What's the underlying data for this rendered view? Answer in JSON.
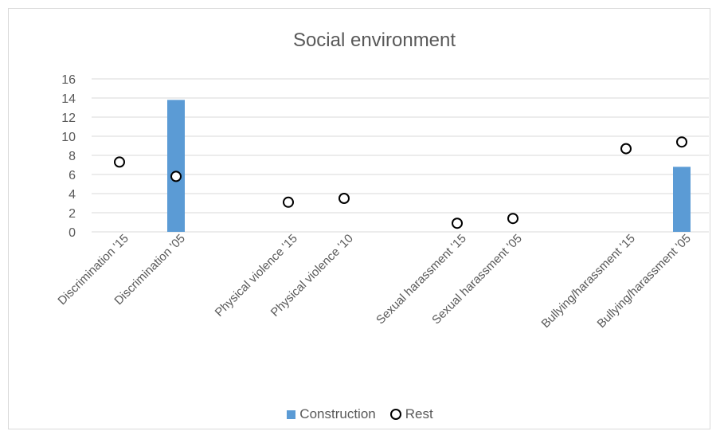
{
  "chart_data": {
    "type": "bar",
    "title": "Social environment",
    "xlabel": "",
    "ylabel": "",
    "ylim": [
      0,
      16
    ],
    "yticks": [
      0,
      2,
      4,
      6,
      8,
      10,
      12,
      14,
      16
    ],
    "grid": true,
    "legend_position": "bottom",
    "categories": [
      "Discrimination '15",
      "Discrimination '05",
      "Physical violence '15",
      "Physical violence '10",
      "Sexual harassment '15",
      "Sexual harassment '05",
      "Bullying/harassment '15",
      "Bullying/harassment '05"
    ],
    "category_groups": [
      [
        0,
        1
      ],
      [
        2,
        3
      ],
      [
        4,
        5
      ],
      [
        6,
        7
      ]
    ],
    "series": [
      {
        "name": "Construction",
        "type": "bar",
        "color": "#5b9bd5",
        "values": [
          null,
          13.8,
          null,
          null,
          null,
          null,
          null,
          6.8
        ]
      },
      {
        "name": "Rest",
        "type": "scatter",
        "marker": "open-circle",
        "color": "#000000",
        "values": [
          7.3,
          5.8,
          3.1,
          3.5,
          0.9,
          1.4,
          8.7,
          9.4
        ]
      }
    ]
  }
}
